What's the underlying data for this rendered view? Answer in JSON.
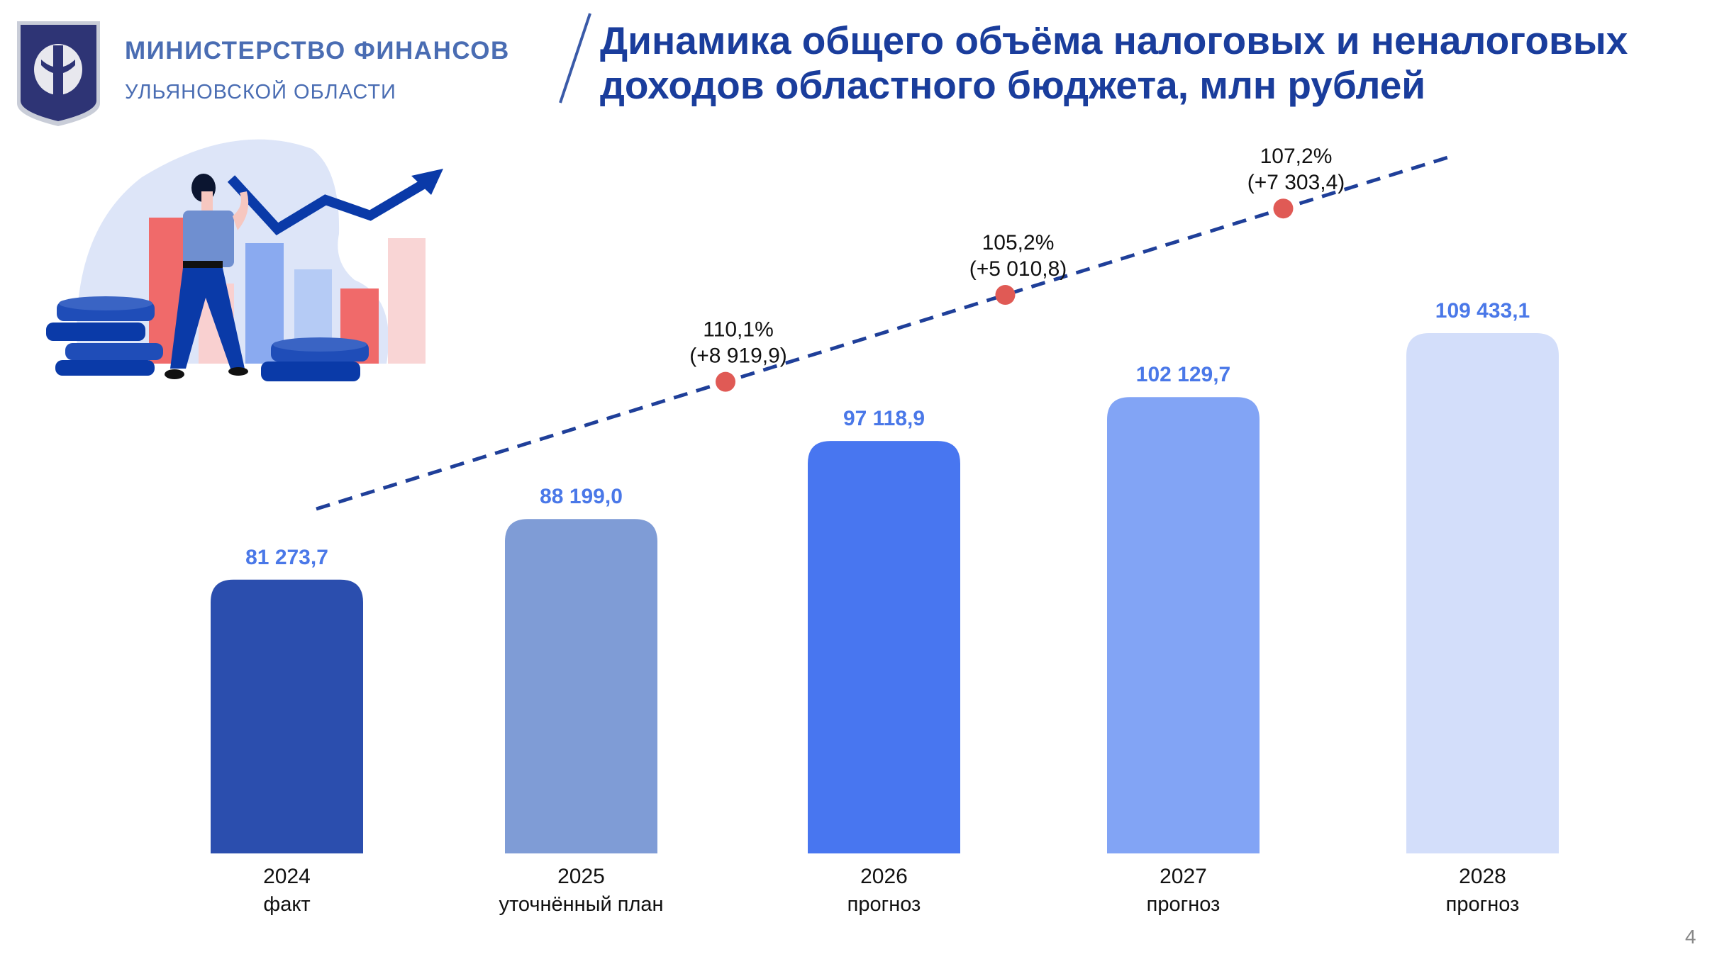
{
  "header": {
    "ministry_name": "МИНИСТЕРСТВО ФИНАНСОВ",
    "ministry_region": "УЛЬЯНОВСКОЙ ОБЛАСТИ",
    "title_line1": "Динамика общего объёма налоговых и неналоговых",
    "title_line2": "доходов областного бюджета, млн рублей"
  },
  "page_number": "4",
  "chart_data": {
    "type": "bar",
    "title": "Динамика общего объёма налоговых и неналоговых доходов областного бюджета, млн рублей",
    "categories": [
      "2024",
      "2025",
      "2026",
      "2027",
      "2028"
    ],
    "category_sublabels": [
      "факт",
      "уточнённый план",
      "прогноз",
      "прогноз",
      "прогноз"
    ],
    "values": [
      81273.7,
      88199.0,
      97118.9,
      102129.7,
      109433.1
    ],
    "value_labels": [
      "81 273,7",
      "88 199,0",
      "97 118,9",
      "102 129,7",
      "109 433,1"
    ],
    "bar_colors": [
      "#2b4eae",
      "#7f9cd6",
      "#4876f0",
      "#82a4f5",
      "#d3defa"
    ],
    "value_label_color": "#4a78e8",
    "ylim": [
      50000,
      110000
    ],
    "grid": false,
    "trend_annotations": [
      {
        "between": [
          "2025",
          "2026"
        ],
        "percent": "110,1%",
        "delta": "(+8 919,9)"
      },
      {
        "between": [
          "2026",
          "2027"
        ],
        "percent": "105,2%",
        "delta": "(+5 010,8)"
      },
      {
        "between": [
          "2027",
          "2028"
        ],
        "percent": "107,2%",
        "delta": "(+7 303,4)"
      }
    ],
    "trend_line_color": "#1f3f99",
    "trend_dot_color": "#e05a55"
  }
}
